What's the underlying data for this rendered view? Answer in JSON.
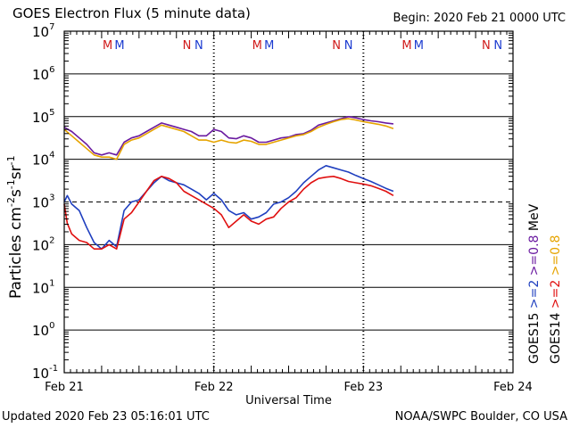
{
  "header": {
    "title": "GOES Electron Flux (5 minute data)",
    "begin": "Begin: 2020 Feb 21 0000 UTC"
  },
  "footer": {
    "updated": "Updated 2020 Feb 23 05:16:01 UTC",
    "credit": "NOAA/SWPC Boulder, CO USA"
  },
  "colors": {
    "goes15_2mev": "#1f3fbf",
    "goes14_2mev": "#e01010",
    "goes15_08mev": "#6a1aa0",
    "goes14_08mev": "#e6a400",
    "m_marker": "#d01a1a",
    "n_marker": "#1a3ad0"
  },
  "chart_data": {
    "type": "line",
    "title": "GOES Electron Flux (5 minute data)",
    "xlabel": "Universal Time",
    "ylabel": "Particles cm-2s-1sr-1",
    "ylabel_parts": {
      "base": "Particles cm",
      "e1": "-2",
      "m1": "s",
      "e2": "-1",
      "m2": "sr",
      "e3": "-1"
    },
    "x_unit": "days since 2020 Feb 21 0000 UTC",
    "xlim": [
      0,
      3
    ],
    "x_ticks": [
      {
        "value": 0,
        "label": "Feb 21"
      },
      {
        "value": 1,
        "label": "Feb 22"
      },
      {
        "value": 2,
        "label": "Feb 23"
      },
      {
        "value": 3,
        "label": "Feb 24"
      }
    ],
    "y_scale": "log",
    "ylim_exponent": [
      -1,
      7
    ],
    "y_ticks": [
      {
        "exp": 7,
        "base": "10",
        "sup": "7"
      },
      {
        "exp": 6,
        "base": "10",
        "sup": "6"
      },
      {
        "exp": 5,
        "base": "10",
        "sup": "5"
      },
      {
        "exp": 4,
        "base": "10",
        "sup": "4"
      },
      {
        "exp": 3,
        "base": "10",
        "sup": "3"
      },
      {
        "exp": 2,
        "base": "10",
        "sup": "2"
      },
      {
        "exp": 1,
        "base": "10",
        "sup": "1"
      },
      {
        "exp": 0,
        "base": "10",
        "sup": "0"
      },
      {
        "exp": -1,
        "base": "10",
        "sup": "-1"
      }
    ],
    "threshold_exponent": 3,
    "markers": [
      {
        "x": 0.29,
        "label": "M",
        "group": "m"
      },
      {
        "x": 0.37,
        "label": "M",
        "group": "n"
      },
      {
        "x": 0.82,
        "label": "N",
        "group": "m"
      },
      {
        "x": 0.9,
        "label": "N",
        "group": "n"
      },
      {
        "x": 1.29,
        "label": "M",
        "group": "m"
      },
      {
        "x": 1.37,
        "label": "M",
        "group": "n"
      },
      {
        "x": 1.82,
        "label": "N",
        "group": "m"
      },
      {
        "x": 1.9,
        "label": "N",
        "group": "n"
      },
      {
        "x": 2.29,
        "label": "M",
        "group": "m"
      },
      {
        "x": 2.37,
        "label": "M",
        "group": "n"
      },
      {
        "x": 2.82,
        "label": "N",
        "group": "m"
      },
      {
        "x": 2.9,
        "label": "N",
        "group": "n"
      }
    ],
    "legend": [
      {
        "text": "GOES15",
        "color_key": "",
        "column": 0,
        "row": 0
      },
      {
        "text": ">=2",
        "color_key": "goes15_2mev",
        "column": 0,
        "row": 1
      },
      {
        "text": ">=0.8",
        "color_key": "goes15_08mev",
        "column": 0,
        "row": 2
      },
      {
        "text": "MeV",
        "color_key": "",
        "column": 0,
        "row": 3
      },
      {
        "text": "GOES14",
        "color_key": "",
        "column": 1,
        "row": 0
      },
      {
        "text": ">=2",
        "color_key": "goes14_2mev",
        "column": 1,
        "row": 1
      },
      {
        "text": ">=0.8",
        "color_key": "goes14_08mev",
        "column": 1,
        "row": 2
      }
    ],
    "series": [
      {
        "name": "GOES15 >=0.8 MeV",
        "color_key": "goes15_08mev",
        "x": [
          0.0,
          0.05,
          0.1,
          0.15,
          0.2,
          0.25,
          0.3,
          0.35,
          0.4,
          0.45,
          0.5,
          0.55,
          0.6,
          0.65,
          0.7,
          0.75,
          0.8,
          0.85,
          0.9,
          0.95,
          1.0,
          1.05,
          1.1,
          1.15,
          1.2,
          1.25,
          1.3,
          1.35,
          1.4,
          1.45,
          1.5,
          1.55,
          1.6,
          1.65,
          1.7,
          1.75,
          1.8,
          1.85,
          1.9,
          1.95,
          2.0,
          2.05,
          2.1,
          2.15,
          2.2
        ],
        "exp": [
          4.75,
          4.65,
          4.5,
          4.35,
          4.15,
          4.1,
          4.15,
          4.1,
          4.4,
          4.5,
          4.55,
          4.65,
          4.75,
          4.85,
          4.8,
          4.75,
          4.7,
          4.65,
          4.55,
          4.55,
          4.7,
          4.65,
          4.5,
          4.48,
          4.55,
          4.5,
          4.4,
          4.4,
          4.45,
          4.5,
          4.52,
          4.58,
          4.6,
          4.68,
          4.8,
          4.85,
          4.9,
          4.95,
          5.0,
          4.97,
          4.93,
          4.9,
          4.88,
          4.85,
          4.83
        ]
      },
      {
        "name": "GOES14 >=0.8 MeV",
        "color_key": "goes14_08mev",
        "x": [
          0.0,
          0.05,
          0.1,
          0.15,
          0.2,
          0.25,
          0.3,
          0.35,
          0.4,
          0.45,
          0.5,
          0.55,
          0.6,
          0.65,
          0.7,
          0.75,
          0.8,
          0.85,
          0.9,
          0.95,
          1.0,
          1.05,
          1.1,
          1.15,
          1.2,
          1.25,
          1.3,
          1.35,
          1.4,
          1.45,
          1.5,
          1.55,
          1.6,
          1.65,
          1.7,
          1.75,
          1.8,
          1.85,
          1.9,
          1.95,
          2.0,
          2.05,
          2.1,
          2.15,
          2.2
        ],
        "exp": [
          4.7,
          4.55,
          4.4,
          4.25,
          4.1,
          4.05,
          4.05,
          4.0,
          4.35,
          4.45,
          4.5,
          4.6,
          4.7,
          4.8,
          4.75,
          4.7,
          4.65,
          4.55,
          4.45,
          4.45,
          4.4,
          4.45,
          4.4,
          4.38,
          4.45,
          4.42,
          4.35,
          4.35,
          4.4,
          4.45,
          4.5,
          4.55,
          4.58,
          4.65,
          4.75,
          4.82,
          4.88,
          4.93,
          4.95,
          4.92,
          4.88,
          4.85,
          4.82,
          4.78,
          4.72
        ]
      },
      {
        "name": "GOES15 >=2 MeV",
        "color_key": "goes15_2mev",
        "x": [
          0.0,
          0.02,
          0.05,
          0.1,
          0.15,
          0.2,
          0.25,
          0.3,
          0.35,
          0.4,
          0.45,
          0.5,
          0.55,
          0.6,
          0.65,
          0.7,
          0.75,
          0.8,
          0.85,
          0.9,
          0.95,
          1.0,
          1.05,
          1.1,
          1.15,
          1.2,
          1.25,
          1.3,
          1.35,
          1.4,
          1.45,
          1.5,
          1.55,
          1.6,
          1.65,
          1.7,
          1.75,
          1.8,
          1.85,
          1.9,
          1.95,
          2.0,
          2.05,
          2.1,
          2.15,
          2.2
        ],
        "exp": [
          3.0,
          3.15,
          2.95,
          2.8,
          2.4,
          2.05,
          1.9,
          2.1,
          1.95,
          2.8,
          3.0,
          3.05,
          3.25,
          3.45,
          3.6,
          3.5,
          3.45,
          3.4,
          3.3,
          3.2,
          3.05,
          3.2,
          3.05,
          2.8,
          2.7,
          2.75,
          2.6,
          2.65,
          2.75,
          2.95,
          3.0,
          3.1,
          3.25,
          3.45,
          3.6,
          3.75,
          3.85,
          3.8,
          3.75,
          3.7,
          3.62,
          3.55,
          3.48,
          3.4,
          3.32,
          3.25
        ]
      },
      {
        "name": "GOES14 >=2 MeV",
        "color_key": "goes14_2mev",
        "x": [
          0.0,
          0.02,
          0.05,
          0.1,
          0.15,
          0.2,
          0.25,
          0.3,
          0.35,
          0.4,
          0.45,
          0.5,
          0.55,
          0.6,
          0.65,
          0.7,
          0.75,
          0.8,
          0.85,
          0.9,
          0.95,
          1.0,
          1.05,
          1.1,
          1.15,
          1.2,
          1.25,
          1.3,
          1.35,
          1.4,
          1.45,
          1.5,
          1.55,
          1.6,
          1.65,
          1.7,
          1.75,
          1.8,
          1.85,
          1.9,
          1.95,
          2.0,
          2.05,
          2.1,
          2.15,
          2.2
        ],
        "exp": [
          2.95,
          2.5,
          2.25,
          2.1,
          2.05,
          1.9,
          1.9,
          2.0,
          1.9,
          2.6,
          2.75,
          3.0,
          3.25,
          3.5,
          3.6,
          3.55,
          3.45,
          3.25,
          3.15,
          3.05,
          2.95,
          2.85,
          2.7,
          2.4,
          2.55,
          2.7,
          2.55,
          2.48,
          2.6,
          2.65,
          2.85,
          3.0,
          3.1,
          3.3,
          3.45,
          3.55,
          3.58,
          3.6,
          3.55,
          3.48,
          3.45,
          3.42,
          3.38,
          3.32,
          3.25,
          3.15
        ]
      }
    ]
  }
}
